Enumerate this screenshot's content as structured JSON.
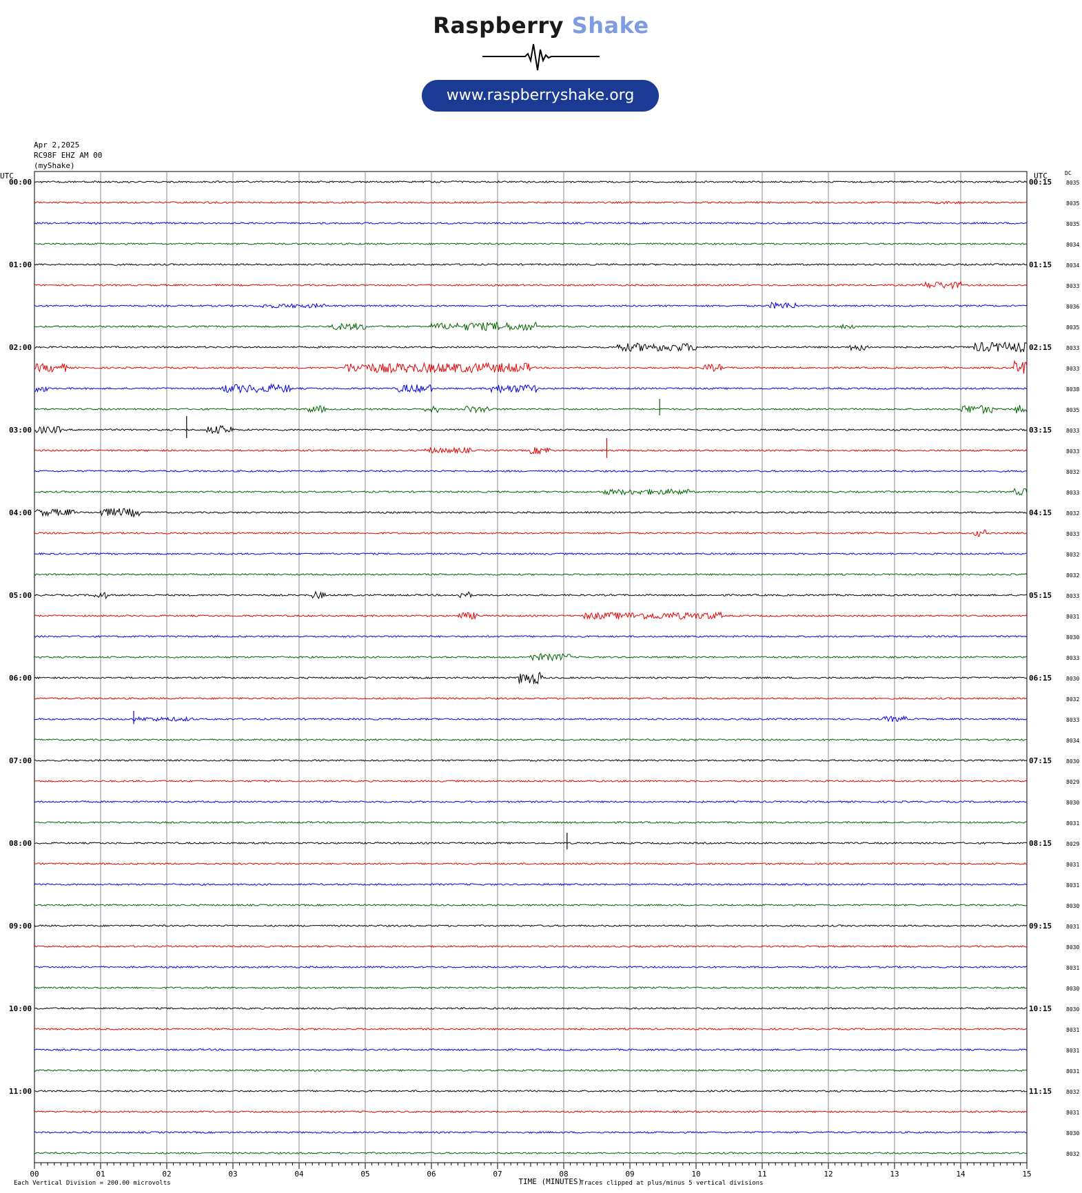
{
  "logo": {
    "word1": "Raspberry",
    "word2": "Shake",
    "url": "www.raspberryshake.org",
    "colors": {
      "dark": "#1a1a1a",
      "light": "#7f9ce0",
      "pill": "#1b3a93"
    },
    "icon": "seismic-wave-icon"
  },
  "header": {
    "date": "Apr 2,2025",
    "station": "RC98F EHZ AM 00",
    "owner": "(myShake)"
  },
  "chart_data": {
    "type": "line",
    "left_axis_label": "UTC",
    "right_axis_label": "UTC",
    "dc_label": "DC",
    "xlabel": "TIME (MINUTES)",
    "x_ticks": [
      "00",
      "01",
      "02",
      "03",
      "04",
      "05",
      "06",
      "07",
      "08",
      "09",
      "10",
      "11",
      "12",
      "13",
      "14",
      "15"
    ],
    "xlim": [
      0,
      15
    ],
    "trace_colors": [
      "#000000",
      "#e60000",
      "#0000e6",
      "#006400"
    ],
    "hour_labels_left": [
      "00:00",
      "01:00",
      "02:00",
      "03:00",
      "04:00",
      "05:00",
      "06:00",
      "07:00",
      "08:00",
      "09:00",
      "10:00",
      "11:00"
    ],
    "hour_labels_right": [
      "00:15",
      "01:15",
      "02:15",
      "03:15",
      "04:15",
      "05:15",
      "06:15",
      "07:15",
      "08:15",
      "09:15",
      "10:15",
      "11:15"
    ],
    "dc_values": [
      "8035",
      "8035",
      "8035",
      "8034",
      "8034",
      "8033",
      "8036",
      "8035",
      "8033",
      "8033",
      "8038",
      "8035",
      "8033",
      "8033",
      "8032",
      "8033",
      "8032",
      "8033",
      "8032",
      "8032",
      "8033",
      "8031",
      "8030",
      "8033",
      "8030",
      "8032",
      "8033",
      "8034",
      "8030",
      "8029",
      "8030",
      "8031",
      "8029",
      "8031",
      "8031",
      "8030",
      "8031",
      "8030",
      "8031",
      "8030",
      "8030",
      "8031",
      "8031",
      "8031",
      "8032",
      "8031",
      "8030",
      "8032"
    ],
    "events": [
      {
        "row": 1,
        "x": [
          13.6,
          14.0
        ],
        "amp": 2
      },
      {
        "row": 5,
        "x": [
          13.4,
          14.0
        ],
        "amp": 5
      },
      {
        "row": 6,
        "x": [
          3.4,
          4.4
        ],
        "amp": 3
      },
      {
        "row": 6,
        "x": [
          11.1,
          11.5
        ],
        "amp": 5
      },
      {
        "row": 7,
        "x": [
          4.5,
          5.0
        ],
        "amp": 5
      },
      {
        "row": 7,
        "x": [
          6.0,
          6.4
        ],
        "amp": 5
      },
      {
        "row": 7,
        "x": [
          6.5,
          7.6
        ],
        "amp": 6
      },
      {
        "row": 7,
        "x": [
          12.2,
          12.4
        ],
        "amp": 4
      },
      {
        "row": 8,
        "x": [
          8.8,
          10.0
        ],
        "amp": 6
      },
      {
        "row": 8,
        "x": [
          12.3,
          12.6
        ],
        "amp": 5
      },
      {
        "row": 8,
        "x": [
          14.2,
          15.0
        ],
        "amp": 7
      },
      {
        "row": 9,
        "x": [
          0.0,
          0.5
        ],
        "amp": 6
      },
      {
        "row": 9,
        "x": [
          4.7,
          7.5
        ],
        "amp": 7
      },
      {
        "row": 9,
        "x": [
          10.1,
          10.4
        ],
        "amp": 5
      },
      {
        "row": 9,
        "x": [
          14.8,
          15.0
        ],
        "amp": 10
      },
      {
        "row": 10,
        "x": [
          0.0,
          0.2
        ],
        "amp": 5
      },
      {
        "row": 10,
        "x": [
          2.8,
          3.9
        ],
        "amp": 6
      },
      {
        "row": 10,
        "x": [
          5.5,
          6.0
        ],
        "amp": 6
      },
      {
        "row": 10,
        "x": [
          6.9,
          7.6
        ],
        "amp": 6
      },
      {
        "row": 11,
        "x": [
          4.1,
          4.4
        ],
        "amp": 5
      },
      {
        "row": 11,
        "x": [
          5.9,
          6.1
        ],
        "amp": 5
      },
      {
        "row": 11,
        "x": [
          6.5,
          6.9
        ],
        "amp": 5
      },
      {
        "row": 11,
        "x": [
          14.0,
          14.5
        ],
        "amp": 6
      },
      {
        "row": 11,
        "x": [
          14.8,
          15.0
        ],
        "amp": 6
      },
      {
        "row": 12,
        "x": [
          0.0,
          0.4
        ],
        "amp": 5
      },
      {
        "row": 12,
        "x": [
          2.6,
          3.0
        ],
        "amp": 6
      },
      {
        "row": 13,
        "x": [
          5.9,
          6.6
        ],
        "amp": 4
      },
      {
        "row": 13,
        "x": [
          7.5,
          7.8
        ],
        "amp": 5
      },
      {
        "row": 15,
        "x": [
          8.6,
          9.9
        ],
        "amp": 4
      },
      {
        "row": 15,
        "x": [
          14.8,
          15.0
        ],
        "amp": 5
      },
      {
        "row": 16,
        "x": [
          0.0,
          0.6
        ],
        "amp": 5
      },
      {
        "row": 16,
        "x": [
          1.0,
          1.6
        ],
        "amp": 6
      },
      {
        "row": 17,
        "x": [
          14.2,
          14.4
        ],
        "amp": 5
      },
      {
        "row": 20,
        "x": [
          0.9,
          1.1
        ],
        "amp": 5
      },
      {
        "row": 20,
        "x": [
          4.2,
          4.4
        ],
        "amp": 5
      },
      {
        "row": 20,
        "x": [
          6.4,
          6.6
        ],
        "amp": 5
      },
      {
        "row": 21,
        "x": [
          6.4,
          6.7
        ],
        "amp": 5
      },
      {
        "row": 21,
        "x": [
          8.3,
          10.4
        ],
        "amp": 5
      },
      {
        "row": 23,
        "x": [
          7.5,
          8.1
        ],
        "amp": 5
      },
      {
        "row": 24,
        "x": [
          7.3,
          7.7
        ],
        "amp": 9
      },
      {
        "row": 26,
        "x": [
          1.5,
          2.4
        ],
        "amp": 3
      },
      {
        "row": 26,
        "x": [
          12.8,
          13.2
        ],
        "amp": 4
      }
    ],
    "spikes": [
      {
        "row": 12,
        "x": 2.3,
        "amp": 20
      },
      {
        "row": 11,
        "x": 9.45,
        "amp": 15
      },
      {
        "row": 13,
        "x": 8.65,
        "amp": 18
      },
      {
        "row": 26,
        "x": 1.5,
        "amp": 12
      },
      {
        "row": 32,
        "x": 8.05,
        "amp": 15
      }
    ]
  },
  "footer": {
    "scale_note": "Each Vertical Division =  200.00 microvolts",
    "clip_note": "Traces clipped at plus/minus 5 vertical divisions"
  }
}
